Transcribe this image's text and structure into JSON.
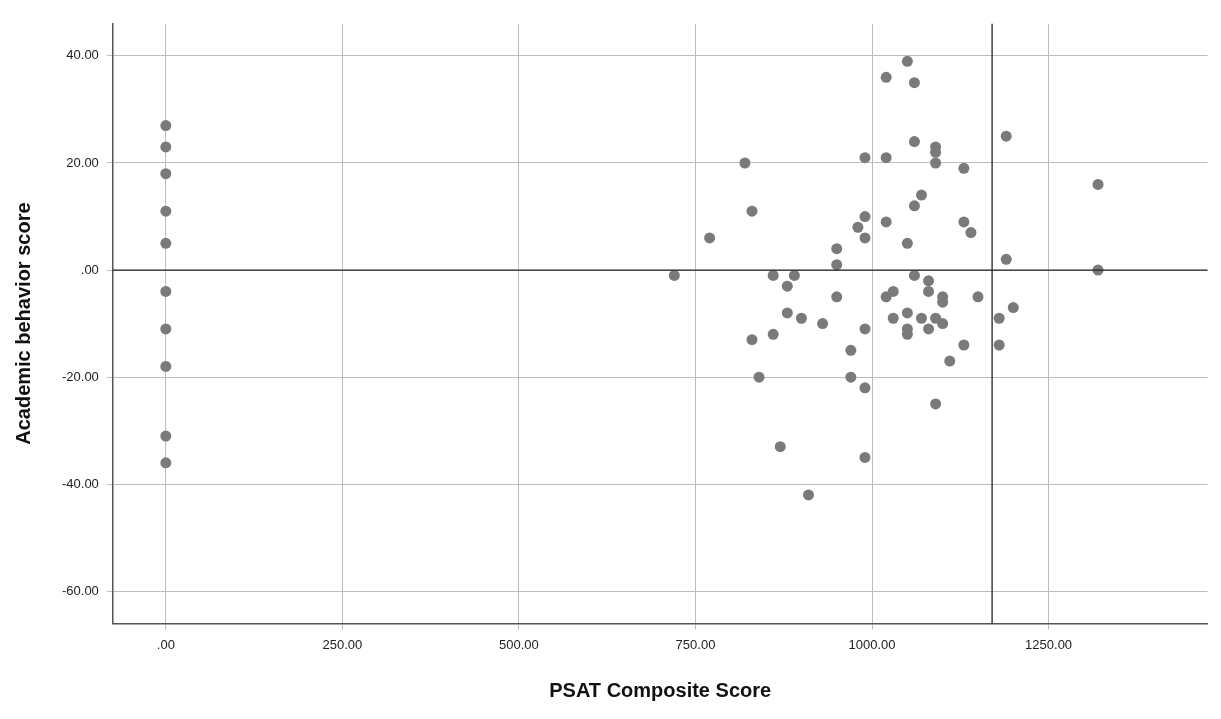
{
  "chart_data": {
    "type": "scatter",
    "xlabel": "PSAT Composite Score",
    "ylabel": "Academic behavior score",
    "x": [
      0,
      0,
      0,
      0,
      0,
      0,
      0,
      0,
      0,
      0,
      1050,
      1020,
      1060,
      1190,
      1060,
      1090,
      1090,
      990,
      1020,
      820,
      1090,
      1130,
      1320,
      1070,
      1060,
      830,
      990,
      1020,
      1130,
      980,
      1140,
      770,
      990,
      1050,
      950,
      1190,
      950,
      1320,
      720,
      860,
      890,
      1060,
      1080,
      880,
      1030,
      1080,
      950,
      1020,
      1100,
      1150,
      1100,
      1200,
      880,
      1050,
      900,
      1030,
      1070,
      1090,
      1180,
      930,
      1100,
      990,
      1050,
      1080,
      1050,
      830,
      860,
      1130,
      1180,
      970,
      840,
      970,
      990,
      1110,
      1090,
      870,
      990,
      910
    ],
    "values": [
      27,
      23,
      18,
      11,
      5,
      -4,
      -11,
      -18,
      -31,
      -36,
      39,
      36,
      35,
      25,
      24,
      23,
      22,
      21,
      21,
      20,
      20,
      19,
      16,
      14,
      12,
      11,
      10,
      9,
      9,
      8,
      7,
      6,
      6,
      5,
      4,
      2,
      1,
      0,
      -1,
      -1,
      -1,
      -1,
      -2,
      -3,
      -4,
      -4,
      -5,
      -5,
      -5,
      -5,
      -6,
      -7,
      -8,
      -8,
      -9,
      -9,
      -9,
      -9,
      -9,
      -10,
      -10,
      -11,
      -11,
      -11,
      -12,
      -13,
      -12,
      -14,
      -14,
      -15,
      -20,
      -20,
      -22,
      -17,
      -25,
      -33,
      -35,
      -42
    ],
    "color": "#7a7a7a",
    "marker": "circle",
    "xlim": [
      -75,
      1475
    ],
    "xticks": [
      {
        "value": 0,
        "label": ".00"
      },
      {
        "value": 250,
        "label": "250.00"
      },
      {
        "value": 500,
        "label": "500.00"
      },
      {
        "value": 750,
        "label": "750.00"
      },
      {
        "value": 1000,
        "label": "1000.00"
      },
      {
        "value": 1250,
        "label": "1250.00"
      }
    ],
    "ylim": [
      -66,
      46
    ],
    "yticks": [
      {
        "value": -60,
        "label": "-60.00"
      },
      {
        "value": -40,
        "label": "-40.00"
      },
      {
        "value": -20,
        "label": "-20.00"
      },
      {
        "value": 0,
        "label": ".00"
      },
      {
        "value": 20,
        "label": "20.00"
      },
      {
        "value": 40,
        "label": "40.00"
      }
    ],
    "grid": true,
    "ref_lines": [
      {
        "axis": "y",
        "value": 0,
        "color": "#222222"
      },
      {
        "axis": "x",
        "value": 1170,
        "color": "#222222"
      }
    ]
  }
}
